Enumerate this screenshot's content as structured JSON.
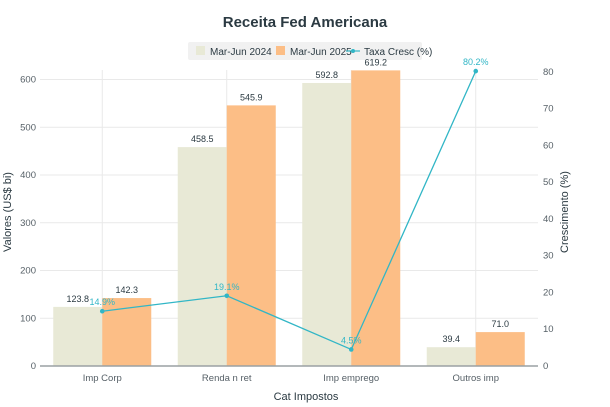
{
  "colors": {
    "series_a": "#e8e9d6",
    "series_b": "#fcbe86",
    "line": "#31b6c6",
    "grid": "#e9e9e9",
    "legend_bg": "#f1f1f1"
  },
  "chart_data": {
    "type": "bar",
    "title": "Receita Fed Americana",
    "xlabel": "Cat Impostos",
    "ylabel": "Valores (US$ bi)",
    "y2label": "Crescimento (%)",
    "categories": [
      "Imp Corp",
      "Renda n ret",
      "Imp emprego",
      "Outros imp"
    ],
    "series": [
      {
        "name": "Mar-Jun 2024",
        "type": "bar",
        "axis": "left",
        "values": [
          123.8,
          458.5,
          592.8,
          39.4
        ],
        "labels": [
          "123.8",
          "458.5",
          "592.8",
          "39.4"
        ]
      },
      {
        "name": "Mar-Jun 2025",
        "type": "bar",
        "axis": "left",
        "values": [
          142.3,
          545.9,
          619.2,
          71.0
        ],
        "labels": [
          "142.3",
          "545.9",
          "619.2",
          "71.0"
        ]
      },
      {
        "name": "Taxa Cresc (%)",
        "type": "line",
        "axis": "right",
        "values": [
          14.9,
          19.1,
          4.5,
          80.2
        ],
        "labels": [
          "14.9%",
          "19.1%",
          "4.5%",
          "80.2%"
        ]
      }
    ],
    "ylim": [
      0,
      620
    ],
    "yticks": [
      "0",
      "100",
      "200",
      "300",
      "400",
      "500",
      "600"
    ],
    "y2lim": [
      0,
      80.5
    ],
    "y2ticks": [
      "0",
      "10",
      "20",
      "30",
      "40",
      "50",
      "60",
      "70",
      "80"
    ],
    "grid": true,
    "legend": "top-center"
  }
}
